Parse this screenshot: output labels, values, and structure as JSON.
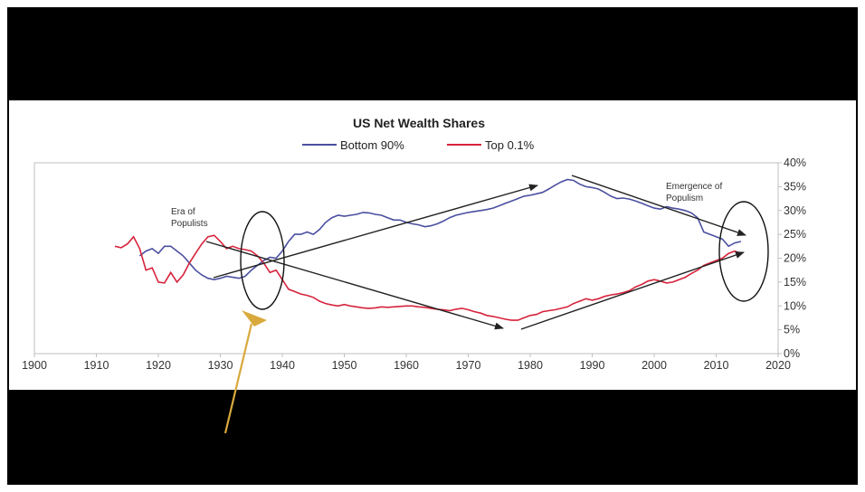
{
  "chart_data": {
    "type": "line",
    "title": "US Net Wealth Shares",
    "xlabel": "",
    "ylabel": "",
    "xlim": [
      1900,
      2020
    ],
    "ylim": [
      0,
      40
    ],
    "x_ticks": [
      1900,
      1910,
      1920,
      1930,
      1940,
      1950,
      1960,
      1970,
      1980,
      1990,
      2000,
      2010,
      2020
    ],
    "y_ticks": [
      "0%",
      "5%",
      "10%",
      "15%",
      "20%",
      "25%",
      "30%",
      "35%",
      "40%"
    ],
    "legend_position": "top",
    "series": [
      {
        "name": "Bottom 90%",
        "color": "#4a4fa0",
        "points": [
          [
            1917,
            20.5
          ],
          [
            1918,
            21.5
          ],
          [
            1919,
            22
          ],
          [
            1920,
            21
          ],
          [
            1921,
            22.5
          ],
          [
            1922,
            22.5
          ],
          [
            1923,
            21.5
          ],
          [
            1924,
            20.5
          ],
          [
            1925,
            19
          ],
          [
            1926,
            17.5
          ],
          [
            1927,
            16.5
          ],
          [
            1928,
            15.8
          ],
          [
            1929,
            15.5
          ],
          [
            1930,
            15.8
          ],
          [
            1931,
            16.2
          ],
          [
            1932,
            16
          ],
          [
            1933,
            15.8
          ],
          [
            1934,
            16.2
          ],
          [
            1935,
            17.5
          ],
          [
            1936,
            18.5
          ],
          [
            1937,
            19.5
          ],
          [
            1938,
            20.2
          ],
          [
            1939,
            20
          ],
          [
            1940,
            21.5
          ],
          [
            1941,
            23.5
          ],
          [
            1942,
            25
          ],
          [
            1943,
            25
          ],
          [
            1944,
            25.5
          ],
          [
            1945,
            25
          ],
          [
            1946,
            26
          ],
          [
            1947,
            27.5
          ],
          [
            1948,
            28.5
          ],
          [
            1949,
            29
          ],
          [
            1950,
            28.8
          ],
          [
            1951,
            29
          ],
          [
            1952,
            29.2
          ],
          [
            1953,
            29.6
          ],
          [
            1954,
            29.5
          ],
          [
            1955,
            29.2
          ],
          [
            1956,
            29
          ],
          [
            1957,
            28.5
          ],
          [
            1958,
            28
          ],
          [
            1959,
            28
          ],
          [
            1960,
            27.5
          ],
          [
            1961,
            27.2
          ],
          [
            1962,
            27
          ],
          [
            1963,
            26.6
          ],
          [
            1964,
            26.8
          ],
          [
            1965,
            27.2
          ],
          [
            1966,
            27.8
          ],
          [
            1967,
            28.5
          ],
          [
            1968,
            29
          ],
          [
            1969,
            29.3
          ],
          [
            1970,
            29.6
          ],
          [
            1971,
            29.8
          ],
          [
            1972,
            30
          ],
          [
            1973,
            30.2
          ],
          [
            1974,
            30.5
          ],
          [
            1975,
            31
          ],
          [
            1976,
            31.5
          ],
          [
            1977,
            32
          ],
          [
            1978,
            32.5
          ],
          [
            1979,
            33
          ],
          [
            1980,
            33.2
          ],
          [
            1981,
            33.5
          ],
          [
            1982,
            33.8
          ],
          [
            1983,
            34.5
          ],
          [
            1984,
            35.3
          ],
          [
            1985,
            36
          ],
          [
            1986,
            36.5
          ],
          [
            1987,
            36.3
          ],
          [
            1988,
            35.5
          ],
          [
            1989,
            35
          ],
          [
            1990,
            34.8
          ],
          [
            1991,
            34.5
          ],
          [
            1992,
            33.8
          ],
          [
            1993,
            33
          ],
          [
            1994,
            32.5
          ],
          [
            1995,
            32.6
          ],
          [
            1996,
            32.4
          ],
          [
            1997,
            32
          ],
          [
            1998,
            31.5
          ],
          [
            1999,
            31
          ],
          [
            2000,
            30.5
          ],
          [
            2001,
            30.3
          ],
          [
            2002,
            30.8
          ],
          [
            2003,
            30.5
          ],
          [
            2004,
            30.3
          ],
          [
            2005,
            30
          ],
          [
            2006,
            29.5
          ],
          [
            2007,
            28.5
          ],
          [
            2008,
            25.5
          ],
          [
            2009,
            25
          ],
          [
            2010,
            24.5
          ],
          [
            2011,
            24
          ],
          [
            2012,
            22.5
          ],
          [
            2013,
            23.2
          ],
          [
            2014,
            23.5
          ]
        ]
      },
      {
        "name": "Top 0.1%",
        "color": "#d6233c",
        "points": [
          [
            1913,
            22.5
          ],
          [
            1914,
            22.2
          ],
          [
            1915,
            23
          ],
          [
            1916,
            24.5
          ],
          [
            1917,
            22
          ],
          [
            1918,
            17.5
          ],
          [
            1919,
            18
          ],
          [
            1920,
            15
          ],
          [
            1921,
            14.8
          ],
          [
            1922,
            17
          ],
          [
            1923,
            15
          ],
          [
            1924,
            16.5
          ],
          [
            1925,
            19
          ],
          [
            1926,
            21
          ],
          [
            1927,
            23
          ],
          [
            1928,
            24.5
          ],
          [
            1929,
            24.8
          ],
          [
            1930,
            23.5
          ],
          [
            1931,
            22
          ],
          [
            1932,
            22.5
          ],
          [
            1933,
            22
          ],
          [
            1934,
            21.8
          ],
          [
            1935,
            21.5
          ],
          [
            1936,
            20.5
          ],
          [
            1937,
            19
          ],
          [
            1938,
            17
          ],
          [
            1939,
            17.5
          ],
          [
            1940,
            15.5
          ],
          [
            1941,
            13.5
          ],
          [
            1942,
            13
          ],
          [
            1943,
            12.5
          ],
          [
            1944,
            12.2
          ],
          [
            1945,
            11.8
          ],
          [
            1946,
            11
          ],
          [
            1947,
            10.5
          ],
          [
            1948,
            10.2
          ],
          [
            1949,
            10
          ],
          [
            1950,
            10.3
          ],
          [
            1951,
            10
          ],
          [
            1952,
            9.8
          ],
          [
            1953,
            9.6
          ],
          [
            1954,
            9.5
          ],
          [
            1955,
            9.6
          ],
          [
            1956,
            9.8
          ],
          [
            1957,
            9.7
          ],
          [
            1958,
            9.8
          ],
          [
            1959,
            9.9
          ],
          [
            1960,
            10
          ],
          [
            1961,
            10
          ],
          [
            1962,
            9.8
          ],
          [
            1963,
            9.7
          ],
          [
            1964,
            9.5
          ],
          [
            1965,
            9.3
          ],
          [
            1966,
            9.2
          ],
          [
            1967,
            9
          ],
          [
            1968,
            9.3
          ],
          [
            1969,
            9.5
          ],
          [
            1970,
            9.2
          ],
          [
            1971,
            8.8
          ],
          [
            1972,
            8.5
          ],
          [
            1973,
            8
          ],
          [
            1974,
            7.8
          ],
          [
            1975,
            7.5
          ],
          [
            1976,
            7.2
          ],
          [
            1977,
            7
          ],
          [
            1978,
            7
          ],
          [
            1979,
            7.5
          ],
          [
            1980,
            8
          ],
          [
            1981,
            8.2
          ],
          [
            1982,
            8.8
          ],
          [
            1983,
            9
          ],
          [
            1984,
            9.2
          ],
          [
            1985,
            9.5
          ],
          [
            1986,
            9.8
          ],
          [
            1987,
            10.5
          ],
          [
            1988,
            11
          ],
          [
            1989,
            11.5
          ],
          [
            1990,
            11.2
          ],
          [
            1991,
            11.5
          ],
          [
            1992,
            12
          ],
          [
            1993,
            12.3
          ],
          [
            1994,
            12.5
          ],
          [
            1995,
            12.8
          ],
          [
            1996,
            13.2
          ],
          [
            1997,
            14
          ],
          [
            1998,
            14.5
          ],
          [
            1999,
            15.2
          ],
          [
            2000,
            15.5
          ],
          [
            2001,
            15.2
          ],
          [
            2002,
            14.8
          ],
          [
            2003,
            15
          ],
          [
            2004,
            15.5
          ],
          [
            2005,
            16
          ],
          [
            2006,
            16.8
          ],
          [
            2007,
            17.5
          ],
          [
            2008,
            18.5
          ],
          [
            2009,
            19
          ],
          [
            2010,
            19.5
          ],
          [
            2011,
            20
          ],
          [
            2012,
            21
          ],
          [
            2013,
            21.5
          ],
          [
            2014,
            21
          ]
        ]
      }
    ],
    "annotations": {
      "era_of_populists": [
        "Era of",
        "Populists"
      ],
      "emergence_of_populism": [
        "Emergence of",
        "Populism"
      ]
    }
  },
  "colors": {
    "frame": "#000000",
    "panel": "#ffffff",
    "axis": "#bfbfbf",
    "arrow": "#222222",
    "highlight_arrow": "#d9a93c"
  }
}
